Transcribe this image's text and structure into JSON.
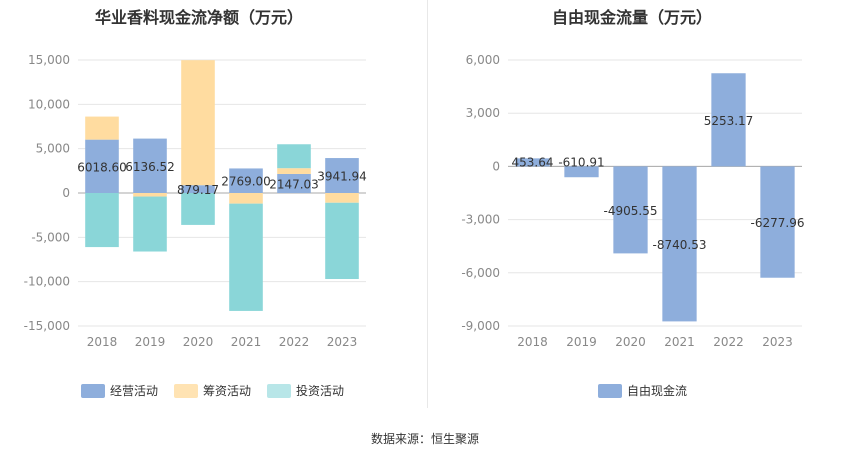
{
  "source_text": "数据来源：恒生聚源",
  "colors": {
    "operating": "#8eaedc",
    "financing": "#ffdca0",
    "investing": "#8ad6d8",
    "free_cash_flow": "#8eaedc",
    "grid": "#e6e6e6",
    "axis_text": "#888888",
    "label_text": "#333333"
  },
  "chart_data": [
    {
      "type": "bar",
      "stacked": true,
      "title": "华业香料现金流净额（万元）",
      "categories": [
        "2018",
        "2019",
        "2020",
        "2021",
        "2022",
        "2023"
      ],
      "series": [
        {
          "name": "经营活动",
          "values": [
            6018.6,
            6136.52,
            879.17,
            2769.0,
            2147.03,
            3941.94
          ]
        },
        {
          "name": "筹资活动",
          "values": [
            2600,
            -400,
            14100,
            -1200,
            650,
            -1100
          ]
        },
        {
          "name": "投资活动",
          "values": [
            -6100,
            -6200,
            -3600,
            -12100,
            2700,
            -8600
          ]
        }
      ],
      "data_labels": [
        "6018.60",
        "6136.52",
        "879.17",
        "2769.00",
        "2147.03",
        "3941.94"
      ],
      "ylim": [
        -15000,
        15000
      ],
      "yticks": [
        15000,
        10000,
        5000,
        0,
        -5000,
        -10000,
        -15000
      ],
      "ytick_labels": [
        "15,000",
        "10,000",
        "5,000",
        "0",
        "-5,000",
        "-10,000",
        "-15,000"
      ],
      "grid": true,
      "legend_position": "bottom"
    },
    {
      "type": "bar",
      "title": "自由现金流量（万元）",
      "categories": [
        "2018",
        "2019",
        "2020",
        "2021",
        "2022",
        "2023"
      ],
      "series": [
        {
          "name": "自由现金流",
          "values": [
            453.64,
            -610.91,
            -4905.55,
            -8740.53,
            5253.17,
            -6277.96
          ]
        }
      ],
      "data_labels": [
        "453.64",
        "-610.91",
        "-4905.55",
        "-8740.53",
        "5253.17",
        "-6277.96"
      ],
      "ylim": [
        -9000,
        6000
      ],
      "yticks": [
        6000,
        3000,
        0,
        -3000,
        -6000,
        -9000
      ],
      "ytick_labels": [
        "6,000",
        "3,000",
        "0",
        "-3,000",
        "-6,000",
        "-9,000"
      ],
      "grid": true,
      "legend_position": "bottom"
    }
  ]
}
